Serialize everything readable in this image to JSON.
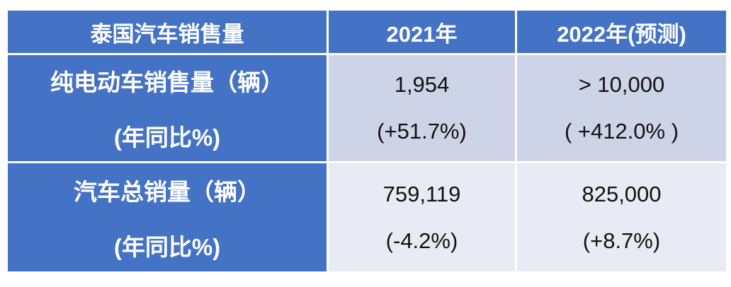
{
  "table": {
    "header": {
      "title": "泰国汽车销售量",
      "col_2021": "2021年",
      "col_2022": "2022年(预测)"
    },
    "rows": [
      {
        "label": "纯电动车销售量（辆）",
        "label_sub": "(年同比%)",
        "y2021": {
          "value": "1,954",
          "yoy": "(+51.7%)"
        },
        "y2022": {
          "value": "> 10,000",
          "yoy": "( +412.0% )"
        }
      },
      {
        "label": "汽车总销量（辆）",
        "label_sub": "(年同比%)",
        "y2021": {
          "value": "759,119",
          "yoy": "(-4.2%)"
        },
        "y2022": {
          "value": "825,000",
          "yoy": "(+8.7%)"
        }
      }
    ]
  },
  "colors": {
    "header_bg": "#4472c4",
    "row_band_dark": "#cdd4e8",
    "row_band_light": "#e9ebf4",
    "header_text": "#ffffff",
    "data_text": "#111111",
    "cell_border": "#ffffff"
  },
  "chart_data": {
    "type": "table",
    "title": "泰国汽车销售量",
    "columns": [
      "泰国汽车销售量",
      "2021年",
      "2022年(预测)"
    ],
    "rows": [
      {
        "metric": "纯电动车销售量（辆）(年同比%)",
        "2021": {
          "units": 1954,
          "yoy_pct": 51.7
        },
        "2022_forecast": {
          "units_text": "> 10,000",
          "yoy_pct": 412.0
        }
      },
      {
        "metric": "汽车总销量（辆）(年同比%)",
        "2021": {
          "units": 759119,
          "yoy_pct": -4.2
        },
        "2022_forecast": {
          "units_text": "825,000",
          "yoy_pct": 8.7
        }
      }
    ],
    "layout": {
      "banded_rows": true,
      "header_style": "solid-blue",
      "grid": "white-borders"
    }
  }
}
